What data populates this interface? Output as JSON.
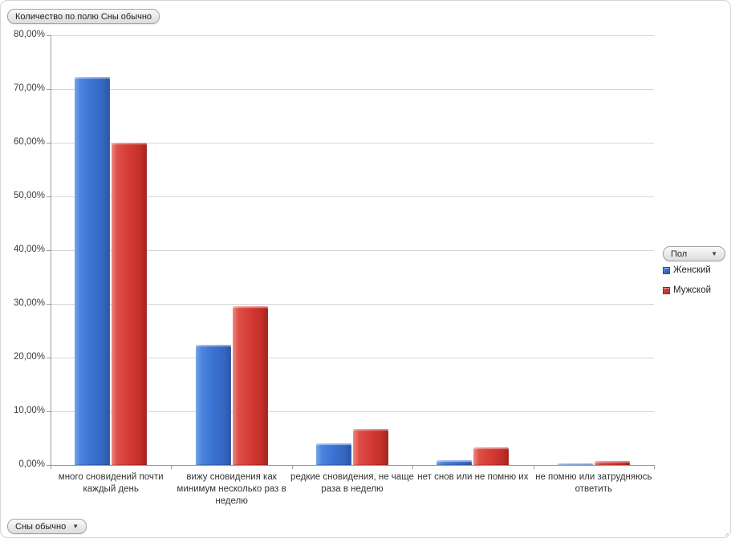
{
  "buttons": {
    "title_field": "Количество по полю Сны обычно",
    "axis_field": "Сны обычно",
    "legend_field": "Пол",
    "dropdown_arrow": "▼"
  },
  "chart_data": {
    "type": "bar",
    "title": "Количество по полю Сны обычно",
    "categories": [
      "много сновидений почти каждый день",
      "вижу сновидения как минимум несколько раз в неделю",
      "редкие сновидения, не чаще раза в неделю",
      "нет снов или не помню их",
      "не помню или затрудняюсь ответить"
    ],
    "series": [
      {
        "name": "Женский",
        "color": "#3b72d2",
        "values": [
          72.3,
          22.4,
          4.1,
          0.9,
          0.3
        ]
      },
      {
        "name": "Мужской",
        "color": "#d53b35",
        "values": [
          60.0,
          29.5,
          6.7,
          3.3,
          0.7
        ]
      }
    ],
    "xlabel": "",
    "ylabel": "",
    "ylim": [
      0,
      80
    ],
    "ytick_step": 10,
    "ytick_labels": [
      "0,00%",
      "10,00%",
      "20,00%",
      "30,00%",
      "40,00%",
      "50,00%",
      "60,00%",
      "70,00%",
      "80,00%"
    ],
    "grid": true,
    "legend_position": "right",
    "legend_title": "Пол"
  }
}
